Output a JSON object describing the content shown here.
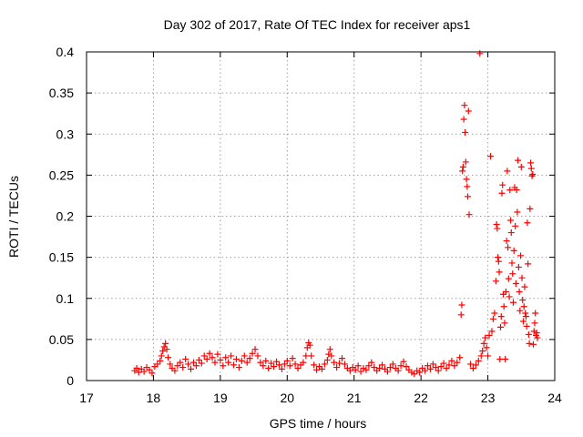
{
  "chart_data": {
    "type": "scatter",
    "title": "Day 302 of 2017, Rate Of TEC Index for receiver aps1",
    "xlabel": "GPS time / hours",
    "ylabel": "ROTI / TECUs",
    "xlim": [
      17,
      24
    ],
    "ylim": [
      0,
      0.4
    ],
    "grid": true,
    "marker": "+",
    "color": "#ff0000",
    "x_ticks": [
      "17",
      "18",
      "19",
      "20",
      "21",
      "22",
      "23",
      "24"
    ],
    "y_ticks": [
      "0",
      "0.05",
      "0.1",
      "0.15",
      "0.2",
      "0.25",
      "0.3",
      "0.35",
      "0.4"
    ],
    "x_tick_values": [
      17,
      18,
      19,
      20,
      21,
      22,
      23,
      24
    ],
    "y_tick_values": [
      0,
      0.05,
      0.1,
      0.15,
      0.2,
      0.25,
      0.3,
      0.35,
      0.4
    ],
    "series": [
      {
        "name": "aps1",
        "points": [
          [
            17.72,
            0.012
          ],
          [
            17.75,
            0.015
          ],
          [
            17.78,
            0.01
          ],
          [
            17.82,
            0.014
          ],
          [
            17.86,
            0.011
          ],
          [
            17.9,
            0.016
          ],
          [
            17.94,
            0.013
          ],
          [
            17.98,
            0.009
          ],
          [
            18.02,
            0.017
          ],
          [
            18.06,
            0.02
          ],
          [
            18.1,
            0.024
          ],
          [
            18.12,
            0.03
          ],
          [
            18.14,
            0.036
          ],
          [
            18.16,
            0.041
          ],
          [
            18.18,
            0.045
          ],
          [
            18.2,
            0.038
          ],
          [
            18.22,
            0.028
          ],
          [
            18.25,
            0.02
          ],
          [
            18.28,
            0.015
          ],
          [
            18.32,
            0.012
          ],
          [
            18.36,
            0.018
          ],
          [
            18.4,
            0.022
          ],
          [
            18.44,
            0.016
          ],
          [
            18.48,
            0.026
          ],
          [
            18.52,
            0.02
          ],
          [
            18.56,
            0.014
          ],
          [
            18.6,
            0.022
          ],
          [
            18.64,
            0.018
          ],
          [
            18.68,
            0.025
          ],
          [
            18.72,
            0.021
          ],
          [
            18.76,
            0.03
          ],
          [
            18.8,
            0.026
          ],
          [
            18.84,
            0.033
          ],
          [
            18.88,
            0.028
          ],
          [
            18.92,
            0.022
          ],
          [
            18.96,
            0.032
          ],
          [
            19.0,
            0.025
          ],
          [
            19.04,
            0.018
          ],
          [
            19.08,
            0.028
          ],
          [
            19.12,
            0.022
          ],
          [
            19.16,
            0.03
          ],
          [
            19.2,
            0.019
          ],
          [
            19.24,
            0.026
          ],
          [
            19.28,
            0.016
          ],
          [
            19.32,
            0.024
          ],
          [
            19.36,
            0.03
          ],
          [
            19.4,
            0.022
          ],
          [
            19.44,
            0.027
          ],
          [
            19.48,
            0.033
          ],
          [
            19.52,
            0.038
          ],
          [
            19.56,
            0.03
          ],
          [
            19.6,
            0.022
          ],
          [
            19.64,
            0.018
          ],
          [
            19.68,
            0.024
          ],
          [
            19.72,
            0.015
          ],
          [
            19.76,
            0.021
          ],
          [
            19.8,
            0.017
          ],
          [
            19.84,
            0.023
          ],
          [
            19.88,
            0.019
          ],
          [
            19.92,
            0.014
          ],
          [
            19.96,
            0.02
          ],
          [
            20.0,
            0.024
          ],
          [
            20.04,
            0.018
          ],
          [
            20.08,
            0.027
          ],
          [
            20.12,
            0.02
          ],
          [
            20.16,
            0.015
          ],
          [
            20.2,
            0.019
          ],
          [
            20.24,
            0.022
          ],
          [
            20.28,
            0.03
          ],
          [
            20.3,
            0.04
          ],
          [
            20.32,
            0.046
          ],
          [
            20.34,
            0.043
          ],
          [
            20.36,
            0.03
          ],
          [
            20.4,
            0.019
          ],
          [
            20.44,
            0.013
          ],
          [
            20.48,
            0.017
          ],
          [
            20.52,
            0.014
          ],
          [
            20.56,
            0.02
          ],
          [
            20.6,
            0.025
          ],
          [
            20.62,
            0.032
          ],
          [
            20.64,
            0.038
          ],
          [
            20.66,
            0.03
          ],
          [
            20.7,
            0.022
          ],
          [
            20.74,
            0.016
          ],
          [
            20.78,
            0.021
          ],
          [
            20.82,
            0.027
          ],
          [
            20.86,
            0.02
          ],
          [
            20.9,
            0.015
          ],
          [
            20.94,
            0.012
          ],
          [
            20.98,
            0.016
          ],
          [
            21.02,
            0.013
          ],
          [
            21.06,
            0.018
          ],
          [
            21.1,
            0.011
          ],
          [
            21.14,
            0.015
          ],
          [
            21.18,
            0.013
          ],
          [
            21.22,
            0.018
          ],
          [
            21.26,
            0.022
          ],
          [
            21.3,
            0.016
          ],
          [
            21.34,
            0.012
          ],
          [
            21.38,
            0.015
          ],
          [
            21.42,
            0.019
          ],
          [
            21.46,
            0.014
          ],
          [
            21.5,
            0.011
          ],
          [
            21.54,
            0.016
          ],
          [
            21.58,
            0.02
          ],
          [
            21.62,
            0.015
          ],
          [
            21.66,
            0.012
          ],
          [
            21.7,
            0.018
          ],
          [
            21.74,
            0.023
          ],
          [
            21.78,
            0.017
          ],
          [
            21.82,
            0.013
          ],
          [
            21.86,
            0.01
          ],
          [
            21.9,
            0.008
          ],
          [
            21.94,
            0.012
          ],
          [
            21.98,
            0.01
          ],
          [
            22.02,
            0.015
          ],
          [
            22.06,
            0.012
          ],
          [
            22.1,
            0.018
          ],
          [
            22.14,
            0.014
          ],
          [
            22.18,
            0.02
          ],
          [
            22.22,
            0.016
          ],
          [
            22.26,
            0.012
          ],
          [
            22.3,
            0.017
          ],
          [
            22.34,
            0.021
          ],
          [
            22.38,
            0.015
          ],
          [
            22.42,
            0.019
          ],
          [
            22.46,
            0.024
          ],
          [
            22.5,
            0.018
          ],
          [
            22.54,
            0.022
          ],
          [
            22.58,
            0.028
          ],
          [
            22.6,
            0.08
          ],
          [
            22.61,
            0.092
          ],
          [
            22.62,
            0.255
          ],
          [
            22.63,
            0.26
          ],
          [
            22.64,
            0.318
          ],
          [
            22.65,
            0.335
          ],
          [
            22.66,
            0.302
          ],
          [
            22.67,
            0.266
          ],
          [
            22.68,
            0.245
          ],
          [
            22.69,
            0.236
          ],
          [
            22.7,
            0.224
          ],
          [
            22.71,
            0.328
          ],
          [
            22.72,
            0.202
          ],
          [
            22.74,
            0.02
          ],
          [
            22.78,
            0.015
          ],
          [
            22.82,
            0.019
          ],
          [
            22.86,
            0.024
          ],
          [
            22.88,
            0.398
          ],
          [
            22.9,
            0.03
          ],
          [
            22.92,
            0.036
          ],
          [
            22.94,
            0.045
          ],
          [
            22.96,
            0.052
          ],
          [
            22.98,
            0.04
          ],
          [
            23.0,
            0.03
          ],
          [
            23.02,
            0.055
          ],
          [
            23.04,
            0.273
          ],
          [
            23.06,
            0.06
          ],
          [
            23.08,
            0.075
          ],
          [
            23.1,
            0.082
          ],
          [
            23.12,
            0.121
          ],
          [
            23.13,
            0.19
          ],
          [
            23.14,
            0.185
          ],
          [
            23.15,
            0.15
          ],
          [
            23.16,
            0.145
          ],
          [
            23.17,
            0.132
          ],
          [
            23.18,
            0.026
          ],
          [
            23.19,
            0.065
          ],
          [
            23.2,
            0.078
          ],
          [
            23.21,
            0.228
          ],
          [
            23.22,
            0.238
          ],
          [
            23.23,
            0.105
          ],
          [
            23.24,
            0.09
          ],
          [
            23.25,
            0.07
          ],
          [
            23.26,
            0.026
          ],
          [
            23.27,
            0.108
          ],
          [
            23.28,
            0.17
          ],
          [
            23.29,
            0.255
          ],
          [
            23.3,
            0.162
          ],
          [
            23.31,
            0.124
          ],
          [
            23.32,
            0.102
          ],
          [
            23.33,
            0.232
          ],
          [
            23.34,
            0.195
          ],
          [
            23.35,
            0.18
          ],
          [
            23.36,
            0.143
          ],
          [
            23.37,
            0.13
          ],
          [
            23.38,
            0.095
          ],
          [
            23.39,
            0.158
          ],
          [
            23.4,
            0.235
          ],
          [
            23.41,
            0.188
          ],
          [
            23.42,
            0.118
          ],
          [
            23.43,
            0.232
          ],
          [
            23.44,
            0.205
          ],
          [
            23.45,
            0.268
          ],
          [
            23.46,
            0.138
          ],
          [
            23.47,
            0.108
          ],
          [
            23.48,
            0.085
          ],
          [
            23.49,
            0.152
          ],
          [
            23.5,
            0.26
          ],
          [
            23.51,
            0.125
          ],
          [
            23.52,
            0.098
          ],
          [
            23.53,
            0.072
          ],
          [
            23.54,
            0.09
          ],
          [
            23.55,
            0.114
          ],
          [
            23.56,
            0.082
          ],
          [
            23.57,
            0.078
          ],
          [
            23.58,
            0.066
          ],
          [
            23.59,
            0.192
          ],
          [
            23.6,
            0.142
          ],
          [
            23.61,
            0.056
          ],
          [
            23.62,
            0.045
          ],
          [
            23.63,
            0.209
          ],
          [
            23.64,
            0.265
          ],
          [
            23.65,
            0.258
          ],
          [
            23.66,
            0.249
          ],
          [
            23.67,
            0.251
          ],
          [
            23.68,
            0.044
          ],
          [
            23.69,
            0.06
          ],
          [
            23.7,
            0.07
          ],
          [
            23.71,
            0.082
          ],
          [
            23.72,
            0.055
          ],
          [
            23.73,
            0.058
          ],
          [
            23.74,
            0.052
          ]
        ]
      }
    ]
  }
}
